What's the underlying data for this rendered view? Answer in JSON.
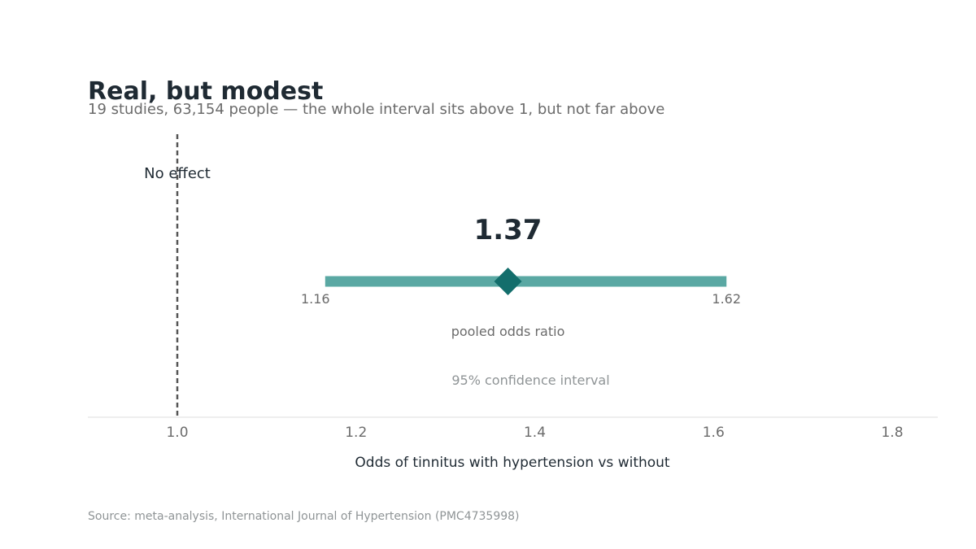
{
  "header": {
    "title": "Real, but modest",
    "subtitle": "19 studies, 63,154 people — the whole interval sits above 1, but not far above"
  },
  "footer": {
    "source": "Source: meta-analysis, International Journal of Hypertension (PMC4735998)"
  },
  "chart_data": {
    "type": "forest",
    "estimate": 1.37,
    "estimate_label": "1.37",
    "ci_low": 1.16,
    "ci_low_label": "1.16",
    "ci_high": 1.62,
    "ci_high_label": "1.62",
    "reference_value": 1.0,
    "reference_label": "No effect",
    "estimate_caption": "pooled odds ratio",
    "interval_caption": "95% confidence interval",
    "xlabel": "Odds of tinnitus with hypertension vs without",
    "xlim": [
      0.9,
      1.85
    ],
    "xticks": [
      1.0,
      1.2,
      1.4,
      1.6,
      1.8
    ],
    "xtick_labels": [
      "1.0",
      "1.2",
      "1.4",
      "1.6",
      "1.8"
    ],
    "grid": false,
    "colors": {
      "interval": "#5aa8a3",
      "estimate": "#136e6c",
      "reference": "#555555",
      "axis": "#dddddd"
    }
  }
}
